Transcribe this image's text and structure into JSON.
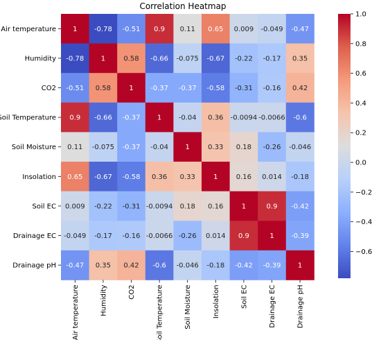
{
  "chart_data": {
    "type": "heatmap",
    "title": "Correlation Heatmap",
    "labels": [
      "Air temperature",
      "Humidity",
      "CO2",
      "Soil Temperature",
      "Soil Moisture",
      "Insolation",
      "Soil EC",
      "Drainage EC",
      "Drainage pH"
    ],
    "values": [
      [
        1,
        -0.78,
        -0.51,
        0.9,
        0.11,
        0.65,
        0.009,
        -0.049,
        -0.47
      ],
      [
        -0.78,
        1,
        0.58,
        -0.66,
        -0.075,
        -0.67,
        -0.22,
        -0.17,
        0.35
      ],
      [
        -0.51,
        0.58,
        1,
        -0.37,
        -0.37,
        -0.58,
        -0.31,
        -0.16,
        0.42
      ],
      [
        0.9,
        -0.66,
        -0.37,
        1,
        -0.04,
        0.36,
        -0.0094,
        -0.0066,
        -0.6
      ],
      [
        0.11,
        -0.075,
        -0.37,
        -0.04,
        1,
        0.33,
        0.18,
        -0.26,
        -0.046
      ],
      [
        0.65,
        -0.67,
        -0.58,
        0.36,
        0.33,
        1,
        0.16,
        0.014,
        -0.18
      ],
      [
        0.009,
        -0.22,
        -0.31,
        -0.0094,
        0.18,
        0.16,
        1,
        0.9,
        -0.42
      ],
      [
        -0.049,
        -0.17,
        -0.16,
        -0.0066,
        -0.26,
        0.014,
        0.9,
        1,
        -0.39
      ],
      [
        -0.47,
        0.35,
        0.42,
        -0.6,
        -0.046,
        -0.18,
        -0.42,
        -0.39,
        1
      ]
    ],
    "cell_labels": [
      [
        "1",
        "-0.78",
        "-0.51",
        "0.9",
        "0.11",
        "0.65",
        "0.009",
        "-0.049",
        "-0.47"
      ],
      [
        "-0.78",
        "1",
        "0.58",
        "-0.66",
        "-0.075",
        "-0.67",
        "-0.22",
        "-0.17",
        "0.35"
      ],
      [
        "-0.51",
        "0.58",
        "1",
        "-0.37",
        "-0.37",
        "-0.58",
        "-0.31",
        "-0.16",
        "0.42"
      ],
      [
        "0.9",
        "-0.66",
        "-0.37",
        "1",
        "-0.04",
        "0.36",
        "-0.0094",
        "-0.0066",
        "-0.6"
      ],
      [
        "0.11",
        "-0.075",
        "-0.37",
        "-0.04",
        "1",
        "0.33",
        "0.18",
        "-0.26",
        "-0.046"
      ],
      [
        "0.65",
        "-0.67",
        "-0.58",
        "0.36",
        "0.33",
        "1",
        "0.16",
        "0.014",
        "-0.18"
      ],
      [
        "0.009",
        "-0.22",
        "-0.31",
        "-0.0094",
        "0.18",
        "0.16",
        "1",
        "0.9",
        "-0.42"
      ],
      [
        "-0.049",
        "-0.17",
        "-0.16",
        "-0.0066",
        "-0.26",
        "0.014",
        "0.9",
        "1",
        "-0.39"
      ],
      [
        "-0.47",
        "0.35",
        "0.42",
        "-0.6",
        "-0.046",
        "-0.18",
        "-0.42",
        "-0.39",
        "1"
      ]
    ],
    "colormap": "coolwarm",
    "vmin": -0.78,
    "vmax": 1,
    "colorbar": {
      "ticks": [
        1.0,
        0.8,
        0.6,
        0.4,
        0.2,
        0.0,
        -0.2,
        -0.4,
        -0.6
      ],
      "tick_labels": [
        "1.0",
        "0.8",
        "0.6",
        "0.4",
        "0.2",
        "0.0",
        "−0.2",
        "−0.4",
        "−0.6"
      ]
    },
    "grid": false
  }
}
